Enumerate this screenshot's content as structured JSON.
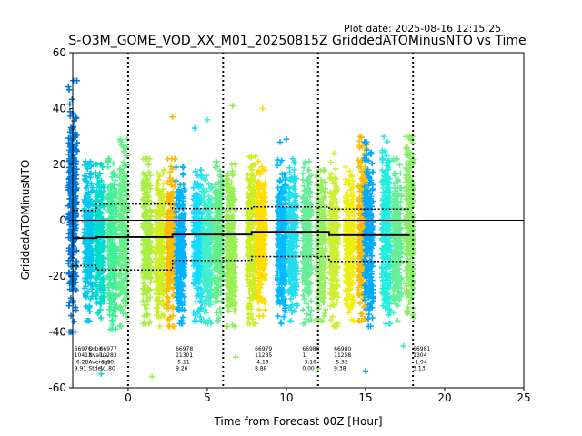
{
  "header": {
    "plot_date": "Plot date: 2025-08-16 12:15:25",
    "title": "S-O3M_GOME_VOD_XX_M01_20250815Z GriddedATOMinusNTO vs Time"
  },
  "chart_data": {
    "type": "scatter",
    "title": "S-O3M_GOME_VOD_XX_M01_20250815Z GriddedATOMinusNTO vs Time",
    "xlabel": "Time from Forecast 00Z [Hour]",
    "ylabel": "GriddedATOMinusNTO",
    "xlim": [
      -3.5,
      25
    ],
    "ylim": [
      -60,
      60
    ],
    "xticks": [
      0,
      5,
      10,
      15,
      20,
      25
    ],
    "yticks": [
      -60,
      -40,
      -20,
      0,
      20,
      40,
      60
    ],
    "grid": false,
    "marker": "plus",
    "vertical_dotted_lines": [
      0,
      6,
      12,
      18
    ],
    "zero_line": 0,
    "scatter_columns": [
      {
        "x": -3.5,
        "ymin": -40,
        "ymax": 50,
        "color": "#0077dd"
      },
      {
        "x": -2.5,
        "ymin": -36,
        "ymax": 21,
        "color": "#00c8ee"
      },
      {
        "x": -1.8,
        "ymin": -35,
        "ymax": 20,
        "color": "#00ddcc"
      },
      {
        "x": -1.0,
        "ymin": -39,
        "ymax": 22,
        "color": "#44ee99"
      },
      {
        "x": -0.3,
        "ymin": -38,
        "ymax": 29,
        "color": "#66f088"
      },
      {
        "x": 1.2,
        "ymin": -37,
        "ymax": 22,
        "color": "#aaee44"
      },
      {
        "x": 2.0,
        "ymin": -38,
        "ymax": 18,
        "color": "#ccee22"
      },
      {
        "x": 2.7,
        "ymin": -38,
        "ymax": 22,
        "color": "#ffbb00"
      },
      {
        "x": 3.3,
        "ymin": -37,
        "ymax": 19,
        "color": "#00b4ff"
      },
      {
        "x": 4.4,
        "ymin": -36,
        "ymax": 18,
        "color": "#11ddff"
      },
      {
        "x": 5.0,
        "ymin": -37,
        "ymax": 16,
        "color": "#44eecc"
      },
      {
        "x": 5.7,
        "ymin": -36,
        "ymax": 21,
        "color": "#66ee88"
      },
      {
        "x": 6.5,
        "ymin": -38,
        "ymax": 20,
        "color": "#99ee55"
      },
      {
        "x": 7.8,
        "ymin": -37,
        "ymax": 23,
        "color": "#ccee22"
      },
      {
        "x": 8.4,
        "ymin": -35,
        "ymax": 24,
        "color": "#ffdd00"
      },
      {
        "x": 9.7,
        "ymin": -37,
        "ymax": 23,
        "color": "#00bbff"
      },
      {
        "x": 10.4,
        "ymin": -36,
        "ymax": 22,
        "color": "#22ddee"
      },
      {
        "x": 11.3,
        "ymin": -37,
        "ymax": 21,
        "color": "#66ee99"
      },
      {
        "x": 12.2,
        "ymin": -36,
        "ymax": 18,
        "color": "#99ee66"
      },
      {
        "x": 13.0,
        "ymin": -38,
        "ymax": 24,
        "color": "#ccee33"
      },
      {
        "x": 14.0,
        "ymin": -36,
        "ymax": 20,
        "color": "#eeee11"
      },
      {
        "x": 14.8,
        "ymin": -36,
        "ymax": 30,
        "color": "#ffbb00"
      },
      {
        "x": 15.2,
        "ymin": -38,
        "ymax": 28,
        "color": "#00aaff"
      },
      {
        "x": 16.3,
        "ymin": -37,
        "ymax": 30,
        "color": "#22eedd"
      },
      {
        "x": 17.0,
        "ymin": -36,
        "ymax": 22,
        "color": "#66ee99"
      },
      {
        "x": 17.8,
        "ymin": -35,
        "ymax": 30,
        "color": "#88ee66"
      }
    ],
    "stray_points": [
      {
        "x": 2.8,
        "y": 37,
        "color": "#ffbb00"
      },
      {
        "x": 8.5,
        "y": 40,
        "color": "#ffdd00"
      },
      {
        "x": 6.6,
        "y": 41,
        "color": "#88ee55"
      },
      {
        "x": 4.2,
        "y": 33,
        "color": "#11ddff"
      },
      {
        "x": 5.0,
        "y": 36,
        "color": "#44eecc"
      },
      {
        "x": 15.0,
        "y": -54,
        "color": "#00aaff"
      },
      {
        "x": 1.5,
        "y": -56,
        "color": "#aaee44"
      },
      {
        "x": 17.4,
        "y": -45,
        "color": "#44ee99"
      },
      {
        "x": 6.8,
        "y": -49,
        "color": "#88ee55"
      },
      {
        "x": -1.7,
        "y": -55,
        "color": "#00ddcc"
      },
      {
        "x": 12.0,
        "y": -53,
        "color": "#99ee55"
      },
      {
        "x": 9.6,
        "y": 28,
        "color": "#00aaff"
      },
      {
        "x": 10.0,
        "y": 29,
        "color": "#00aaff"
      }
    ],
    "mean_segments": [
      {
        "x0": -3.5,
        "x1": -2.0,
        "y": -6.4
      },
      {
        "x0": -2.0,
        "x1": 2.8,
        "y": -6.0
      },
      {
        "x0": 2.8,
        "x1": 7.8,
        "y": -5.1
      },
      {
        "x0": 7.8,
        "x1": 12.7,
        "y": -4.1
      },
      {
        "x0": 12.7,
        "x1": 17.8,
        "y": -5.3
      }
    ],
    "upper_std_segments": [
      {
        "x0": -3.5,
        "x1": -2.0,
        "y": 3.5
      },
      {
        "x0": -2.0,
        "x1": 2.8,
        "y": 5.8
      },
      {
        "x0": 2.8,
        "x1": 7.8,
        "y": 4.2
      },
      {
        "x0": 7.8,
        "x1": 12.7,
        "y": 4.8
      },
      {
        "x0": 12.7,
        "x1": 17.8,
        "y": 4.0
      }
    ],
    "lower_std_segments": [
      {
        "x0": -3.5,
        "x1": -2.0,
        "y": -16.2
      },
      {
        "x0": -2.0,
        "x1": 2.8,
        "y": -17.8
      },
      {
        "x0": 2.8,
        "x1": 7.8,
        "y": -14.4
      },
      {
        "x0": 7.8,
        "x1": 12.7,
        "y": -13.0
      },
      {
        "x0": 12.7,
        "x1": 17.8,
        "y": -14.7
      }
    ],
    "stat_labels": [
      "Orbit",
      "Nvalue",
      "Average",
      "Stdev"
    ],
    "stats": [
      {
        "x": -3.4,
        "lines": [
          "66976",
          "10413",
          "-6.28",
          "9.91"
        ]
      },
      {
        "x": -1.8,
        "lines": [
          "66977",
          "11283",
          "-5.90",
          "11.80"
        ]
      },
      {
        "x": 3.0,
        "lines": [
          "66978",
          "11301",
          "-5.11",
          "9.26"
        ]
      },
      {
        "x": 8.0,
        "lines": [
          "66979",
          "11285",
          "-4.13",
          "8.88"
        ]
      },
      {
        "x": 11.0,
        "lines": [
          "66980",
          "1",
          "-3.16",
          "0.00"
        ]
      },
      {
        "x": 13.0,
        "lines": [
          "66980",
          "11258",
          "-5.32",
          "9.38"
        ]
      },
      {
        "x": 18.0,
        "lines": [
          "66981",
          "1304",
          "-1.94",
          "3.13"
        ]
      }
    ]
  }
}
